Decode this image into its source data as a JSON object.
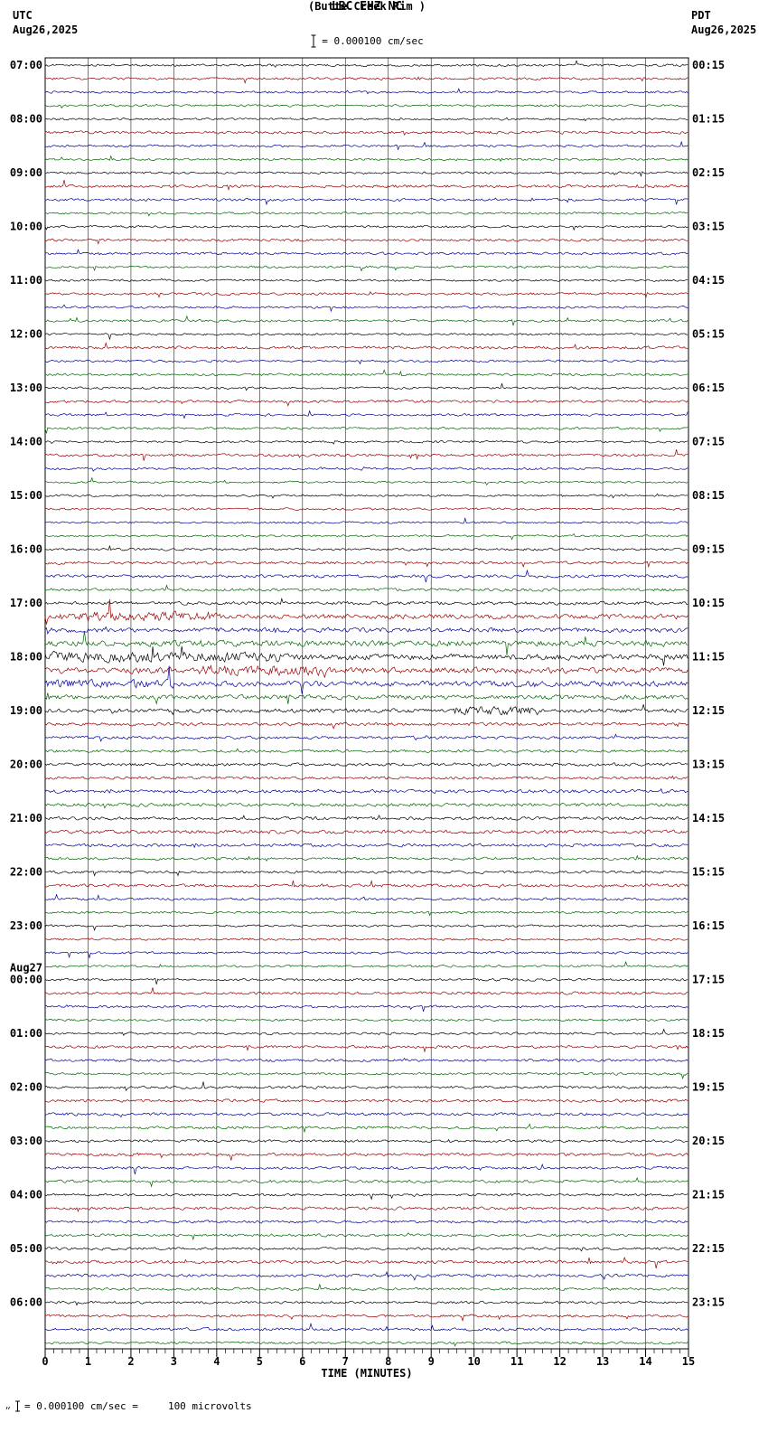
{
  "header": {
    "station_line": "LBC EHZ NC",
    "station_name": "(Butte Creek Rim )",
    "left_tz": "UTC",
    "left_date": "Aug26,2025",
    "right_tz": "PDT",
    "right_date": "Aug26,2025",
    "scale_label": "= 0.000100 cm/sec"
  },
  "footer": {
    "axis_label": "TIME (MINUTES)",
    "scale_note": "= 0.000100 cm/sec =     100 microvolts"
  },
  "icons": {
    "scale_bar": "i-beam-amplitude-scale",
    "footer_marker": "small-tick-marker"
  },
  "chart_data": {
    "type": "line",
    "title": "LBC EHZ NC",
    "subtitle": "(Butte Creek Rim )",
    "xlabel": "TIME (MINUTES)",
    "x_range": [
      0,
      15
    ],
    "x_ticks": [
      0,
      1,
      2,
      3,
      4,
      5,
      6,
      7,
      8,
      9,
      10,
      11,
      12,
      13,
      14,
      15
    ],
    "minutes_per_line": 15,
    "lines_per_hour": 4,
    "grid": true,
    "trace_colors": [
      "#000000",
      "#990000",
      "#000099",
      "#006600"
    ],
    "utc_labels": [
      "07:00",
      "08:00",
      "09:00",
      "10:00",
      "11:00",
      "12:00",
      "13:00",
      "14:00",
      "15:00",
      "16:00",
      "17:00",
      "18:00",
      "19:00",
      "20:00",
      "21:00",
      "22:00",
      "23:00",
      "00:00",
      "01:00",
      "02:00",
      "03:00",
      "04:00",
      "05:00",
      "06:00"
    ],
    "pdt_labels": [
      "00:15",
      "01:15",
      "02:15",
      "03:15",
      "04:15",
      "05:15",
      "06:15",
      "07:15",
      "08:15",
      "09:15",
      "10:15",
      "11:15",
      "12:15",
      "13:15",
      "14:15",
      "15:15",
      "16:15",
      "17:15",
      "18:15",
      "19:15",
      "20:15",
      "21:15",
      "22:15",
      "23:15"
    ],
    "utc_day_break": {
      "label": "Aug27",
      "hour_index": 17
    },
    "amplitudes": [
      1.0,
      1.1,
      1.0,
      1.0,
      1.0,
      1.2,
      1.0,
      1.0,
      1.0,
      1.3,
      1.1,
      1.0,
      1.0,
      1.2,
      1.1,
      1.0,
      1.0,
      1.1,
      1.0,
      1.1,
      1.0,
      1.3,
      1.0,
      1.1,
      1.0,
      1.2,
      1.0,
      1.0,
      1.0,
      1.2,
      1.0,
      0.9,
      0.9,
      1.0,
      0.9,
      0.9,
      1.1,
      1.3,
      1.4,
      1.3,
      1.5,
      2.2,
      2.0,
      2.6,
      2.6,
      2.6,
      2.4,
      2.0,
      1.8,
      1.5,
      1.3,
      1.2,
      1.4,
      1.2,
      1.5,
      1.5,
      1.4,
      1.6,
      1.4,
      1.2,
      1.2,
      1.4,
      1.1,
      1.0,
      1.0,
      1.0,
      1.0,
      1.0,
      1.1,
      1.2,
      1.1,
      1.0,
      1.0,
      1.3,
      1.2,
      1.1,
      1.2,
      1.3,
      1.3,
      1.2,
      1.2,
      1.3,
      1.2,
      1.2,
      1.1,
      1.3,
      1.2,
      1.2,
      1.2,
      1.4,
      1.3,
      1.2,
      1.1,
      1.2,
      1.3,
      1.1
    ],
    "events": [
      {
        "row": 41,
        "start_min": 0,
        "end_min": 4,
        "amp_multiplier": 2.0
      },
      {
        "row": 44,
        "start_min": 0,
        "end_min": 5.5,
        "amp_multiplier": 1.8
      },
      {
        "row": 45,
        "start_min": 3.5,
        "end_min": 6.5,
        "amp_multiplier": 1.8
      },
      {
        "row": 46,
        "start_min": 0,
        "end_min": 3,
        "amp_multiplier": 1.6
      },
      {
        "row": 48,
        "start_min": 9.5,
        "end_min": 11.5,
        "amp_multiplier": 2.2
      }
    ]
  }
}
